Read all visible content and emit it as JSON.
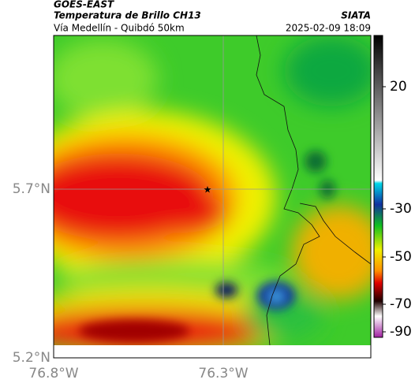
{
  "header": {
    "title": "GOES-EAST",
    "subtitle": "Temperatura de Brillo CH13",
    "location": "Vía Medellín - Quibdó 50km",
    "source": "SIATA",
    "datetime": "2025-02-09 18:09"
  },
  "map": {
    "lat_labels": [
      "5.7°N",
      "5.2°N"
    ],
    "lon_labels": [
      "76.8°W",
      "76.3°W"
    ]
  },
  "colorbar": {
    "ticks": [
      20,
      -30,
      -50,
      -70,
      -90
    ]
  }
}
